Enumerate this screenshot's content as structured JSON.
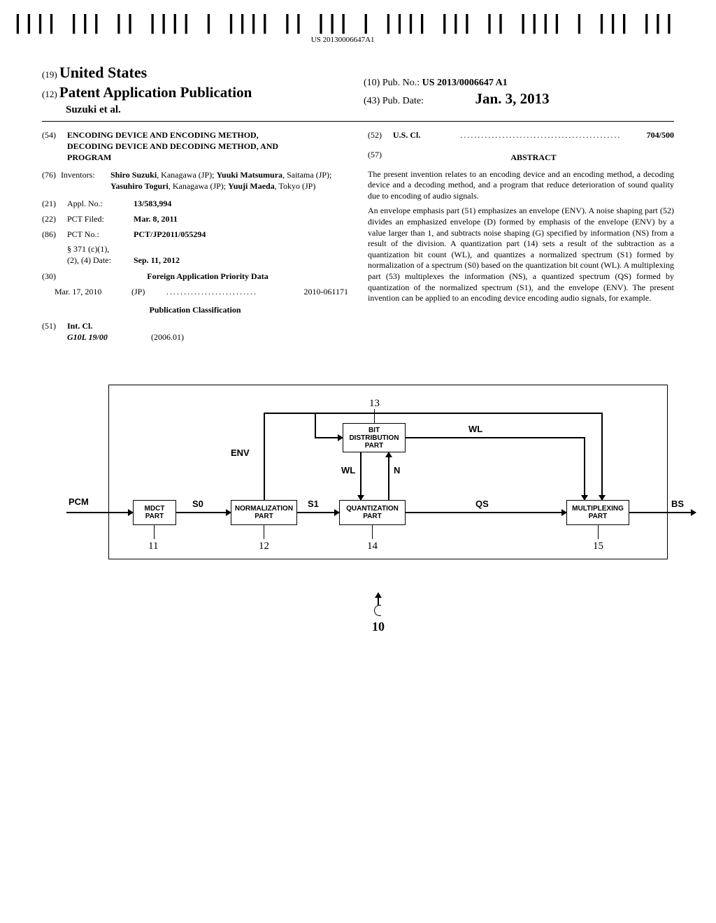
{
  "barcode_text": "US 20130006647A1",
  "header": {
    "country_code": "(19)",
    "country": "United States",
    "pub_code": "(12)",
    "pub_type": "Patent Application Publication",
    "authors": "Suzuki et al.",
    "pubno_code": "(10)",
    "pubno_label": "Pub. No.:",
    "pubno": "US 2013/0006647 A1",
    "pubdate_code": "(43)",
    "pubdate_label": "Pub. Date:",
    "pubdate": "Jan. 3, 2013"
  },
  "title": {
    "code": "(54)",
    "text": "ENCODING DEVICE AND ENCODING METHOD, DECODING DEVICE AND DECODING METHOD, AND PROGRAM"
  },
  "inventors": {
    "code": "(76)",
    "label": "Inventors:",
    "list_prefix1": "Shiro Suzuki",
    "list_loc1": ", Kanagawa (JP); ",
    "list_prefix2": "Yuuki Matsumura",
    "list_loc2": ", Saitama (JP); ",
    "list_prefix3": "Yasuhiro Toguri",
    "list_loc3": ", Kanagawa (JP); ",
    "list_prefix4": "Yuuji Maeda",
    "list_loc4": ", Tokyo (JP)"
  },
  "applno": {
    "code": "(21)",
    "label": "Appl. No.:",
    "val": "13/583,994"
  },
  "pctfiled": {
    "code": "(22)",
    "label": "PCT Filed:",
    "val": "Mar. 8, 2011"
  },
  "pctno": {
    "code": "(86)",
    "label": "PCT No.:",
    "val": "PCT/JP2011/055294"
  },
  "sec371": {
    "label1": "§ 371 (c)(1),",
    "label2": "(2), (4) Date:",
    "val": "Sep. 11, 2012"
  },
  "priority": {
    "code": "(30)",
    "header": "Foreign Application Priority Data",
    "date": "Mar. 17, 2010",
    "country": "(JP)",
    "number": "2010-061171"
  },
  "pubclass_header": "Publication Classification",
  "intcl": {
    "code": "(51)",
    "label": "Int. Cl.",
    "class": "G10L 19/00",
    "edition": "(2006.01)"
  },
  "uscl": {
    "code": "(52)",
    "label": "U.S. Cl.",
    "val": "704/500"
  },
  "abstract": {
    "code": "(57)",
    "header": "ABSTRACT",
    "p1": "The present invention relates to an encoding device and an encoding method, a decoding device and a decoding method, and a program that reduce deterioration of sound quality due to encoding of audio signals.",
    "p2": "An envelope emphasis part (51) emphasizes an envelope (ENV). A noise shaping part (52) divides an emphasized envelope (D) formed by emphasis of the envelope (ENV) by a value larger than 1, and subtracts noise shaping (G) specified by information (NS) from a result of the division. A quantization part (14) sets a result of the subtraction as a quantization bit count (WL), and quantizes a normalized spectrum (S1) formed by normalization of a spectrum (S0) based on the quantization bit count (WL). A multiplexing part (53) multiplexes the information (NS), a quantized spectrum (QS) formed by quantization of the normalized spectrum (S1), and the envelope (ENV). The present invention can be applied to an encoding device encoding audio signals, for example."
  },
  "diagram": {
    "signals": {
      "pcm": "PCM",
      "s0": "S0",
      "env": "ENV",
      "s1": "S1",
      "wl": "WL",
      "n": "N",
      "qs": "QS",
      "bs": "BS"
    },
    "boxes": {
      "mdct": "MDCT\nPART",
      "norm": "NORMALIZATION\nPART",
      "bitdist": "BIT\nDISTRIBUTION\nPART",
      "quant": "QUANTIZATION\nPART",
      "mux": "MULTIPLEXING\nPART"
    },
    "nums": {
      "n11": "11",
      "n12": "12",
      "n13": "13",
      "n14": "14",
      "n15": "15",
      "n10": "10"
    }
  }
}
